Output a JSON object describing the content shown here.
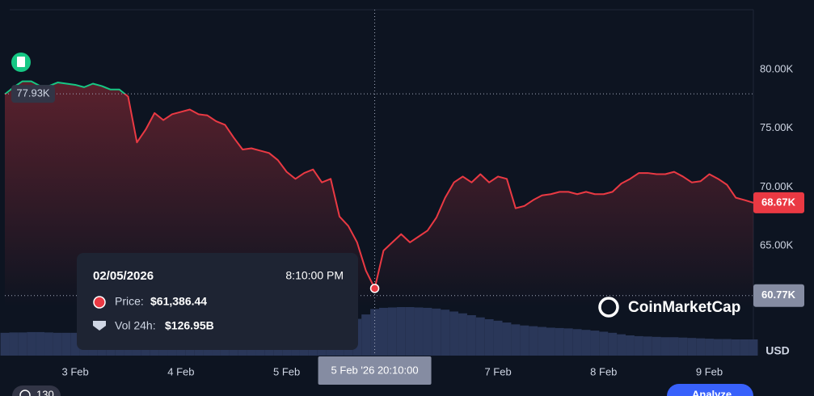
{
  "chart_data": {
    "type": "line",
    "categories": [
      null,
      null,
      null,
      null,
      null,
      null,
      null,
      null,
      "3 Feb",
      null,
      null,
      null,
      null,
      null,
      null,
      null,
      null,
      null,
      null,
      null,
      "4 Feb",
      null,
      null,
      null,
      null,
      null,
      null,
      null,
      null,
      null,
      null,
      null,
      "5 Feb",
      null,
      null,
      null,
      null,
      null,
      null,
      null,
      null,
      null,
      null,
      null,
      null,
      null,
      null,
      null,
      null,
      null,
      null,
      null,
      null,
      null,
      null,
      null,
      "7 Feb",
      null,
      null,
      null,
      null,
      null,
      null,
      null,
      null,
      null,
      null,
      null,
      "8 Feb",
      null,
      null,
      null,
      null,
      null,
      null,
      null,
      null,
      null,
      null,
      null,
      "9 Feb",
      null,
      null,
      null,
      null,
      null
    ],
    "values": [
      77900,
      78500,
      79000,
      79000,
      78600,
      78600,
      78900,
      78800,
      78700,
      78500,
      78800,
      78600,
      78300,
      78300,
      77700,
      73800,
      74900,
      76300,
      75700,
      76200,
      76400,
      76600,
      76200,
      76100,
      75600,
      75300,
      74200,
      73200,
      73300,
      73100,
      72900,
      72300,
      71300,
      70700,
      71200,
      71500,
      70400,
      70700,
      67500,
      66700,
      65300,
      62900,
      61386.44,
      64600,
      65300,
      66000,
      65300,
      65800,
      66300,
      67400,
      69100,
      70400,
      70900,
      70400,
      71100,
      70400,
      70900,
      70700,
      68200,
      68400,
      68900,
      69300,
      69400,
      69600,
      69600,
      69400,
      69600,
      69400,
      69400,
      69600,
      70300,
      70700,
      71200,
      71200,
      71100,
      71100,
      71300,
      70900,
      70400,
      70500,
      71100,
      70700,
      70200,
      69100,
      68900,
      68670
    ],
    "color": "#ea3943",
    "color_above": "#16c784",
    "volume": [
      62,
      63,
      63,
      64,
      64,
      63,
      62,
      62,
      62,
      63,
      63,
      62,
      62,
      63,
      64,
      66,
      67,
      66,
      65,
      64,
      64,
      63,
      63,
      63,
      64,
      65,
      66,
      67,
      67,
      66,
      66,
      65,
      64,
      64,
      65,
      66,
      68,
      72,
      80,
      90,
      100,
      112,
      126.95,
      130,
      131,
      132,
      132,
      131,
      130,
      128,
      125,
      120,
      115,
      110,
      104,
      99,
      95,
      90,
      85,
      82,
      80,
      78,
      76,
      75,
      74,
      72,
      70,
      68,
      65,
      62,
      58,
      55,
      53,
      52,
      51,
      50,
      50,
      49,
      48,
      47,
      46,
      45,
      45,
      44,
      44,
      44
    ],
    "volume_color": "#2a3759",
    "ylim": [
      55670,
      85090
    ],
    "yticks": [
      {
        "value": 65000,
        "label": "65.00K"
      },
      {
        "value": 70000,
        "label": "70.00K"
      },
      {
        "value": 75000,
        "label": "75.00K"
      },
      {
        "value": 80000,
        "label": "80.00K"
      }
    ],
    "grid": false,
    "baseline": {
      "value": 77930,
      "label": "77.93K"
    },
    "last_price": {
      "value": 68670,
      "label": "68.67K"
    },
    "crosshair": {
      "x_label": "5 Feb '26 20:10:00",
      "y": {
        "value": 60770,
        "label": "60.77K"
      }
    },
    "tooltip": {
      "date": "02/05/2026",
      "time": "8:10:00 PM",
      "price_label": "Price:",
      "price": "$61,386.44",
      "volume_label": "Vol 24h:",
      "volume": "$126.95B"
    },
    "currency": "USD",
    "watermark": "CoinMarketCap"
  },
  "controls": {
    "history": "130",
    "analyze": "Analyze"
  }
}
